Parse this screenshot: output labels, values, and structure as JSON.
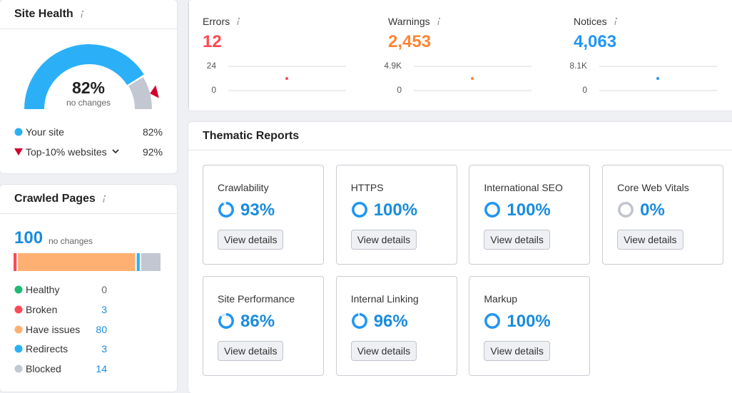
{
  "site_health": {
    "title": "Site Health",
    "score": 82,
    "score_label": "82%",
    "change": "no changes",
    "legend": [
      {
        "label": "Your site",
        "value": 82,
        "value_label": "82%",
        "color": "#2bb0f8"
      },
      {
        "label": "Top-10% websites",
        "value": 92,
        "value_label": "92%",
        "color": "#d1002f"
      }
    ]
  },
  "issues": [
    {
      "label": "Errors",
      "value": 12,
      "color": "#ff4953",
      "ylim": [
        0,
        24
      ],
      "yticks": [
        0,
        24
      ]
    },
    {
      "label": "Warnings",
      "value": 2453,
      "value_label": "2,453",
      "color": "#ff8534",
      "ylim": [
        0,
        4900
      ],
      "yticks": [
        0,
        {
          "value": 4900,
          "label": "4.9K"
        }
      ]
    },
    {
      "label": "Notices",
      "value": 4063,
      "value_label": "4,063",
      "color": "#2196f3",
      "ylim": [
        0,
        8100
      ],
      "yticks": [
        0,
        {
          "value": 8100,
          "label": "8.1K"
        }
      ]
    }
  ],
  "crawled_pages": {
    "title": "Crawled Pages",
    "total": 100,
    "change": "no changes",
    "rows": [
      {
        "label": "Healthy",
        "value": 0,
        "color": "#1fba75"
      },
      {
        "label": "Broken",
        "value": 3,
        "color": "#ff4953"
      },
      {
        "label": "Have issues",
        "value": 80,
        "color": "#fdb071"
      },
      {
        "label": "Redirects",
        "value": 3,
        "color": "#2bb0f8"
      },
      {
        "label": "Blocked",
        "value": 14,
        "color": "#c2c7d2"
      }
    ]
  },
  "thematic_reports": {
    "title": "Thematic Reports",
    "action": "View details",
    "reports": [
      {
        "name": "Crawlability",
        "value": 93,
        "value_label": "93%"
      },
      {
        "name": "HTTPS",
        "value": 100,
        "value_label": "100%"
      },
      {
        "name": "International SEO",
        "value": 100,
        "value_label": "100%"
      },
      {
        "name": "Core Web Vitals",
        "value": 0,
        "value_label": "0%"
      },
      {
        "name": "Site Performance",
        "value": 86,
        "value_label": "86%"
      },
      {
        "name": "Internal Linking",
        "value": 96,
        "value_label": "96%"
      },
      {
        "name": "Markup",
        "value": 100,
        "value_label": "100%"
      }
    ]
  }
}
